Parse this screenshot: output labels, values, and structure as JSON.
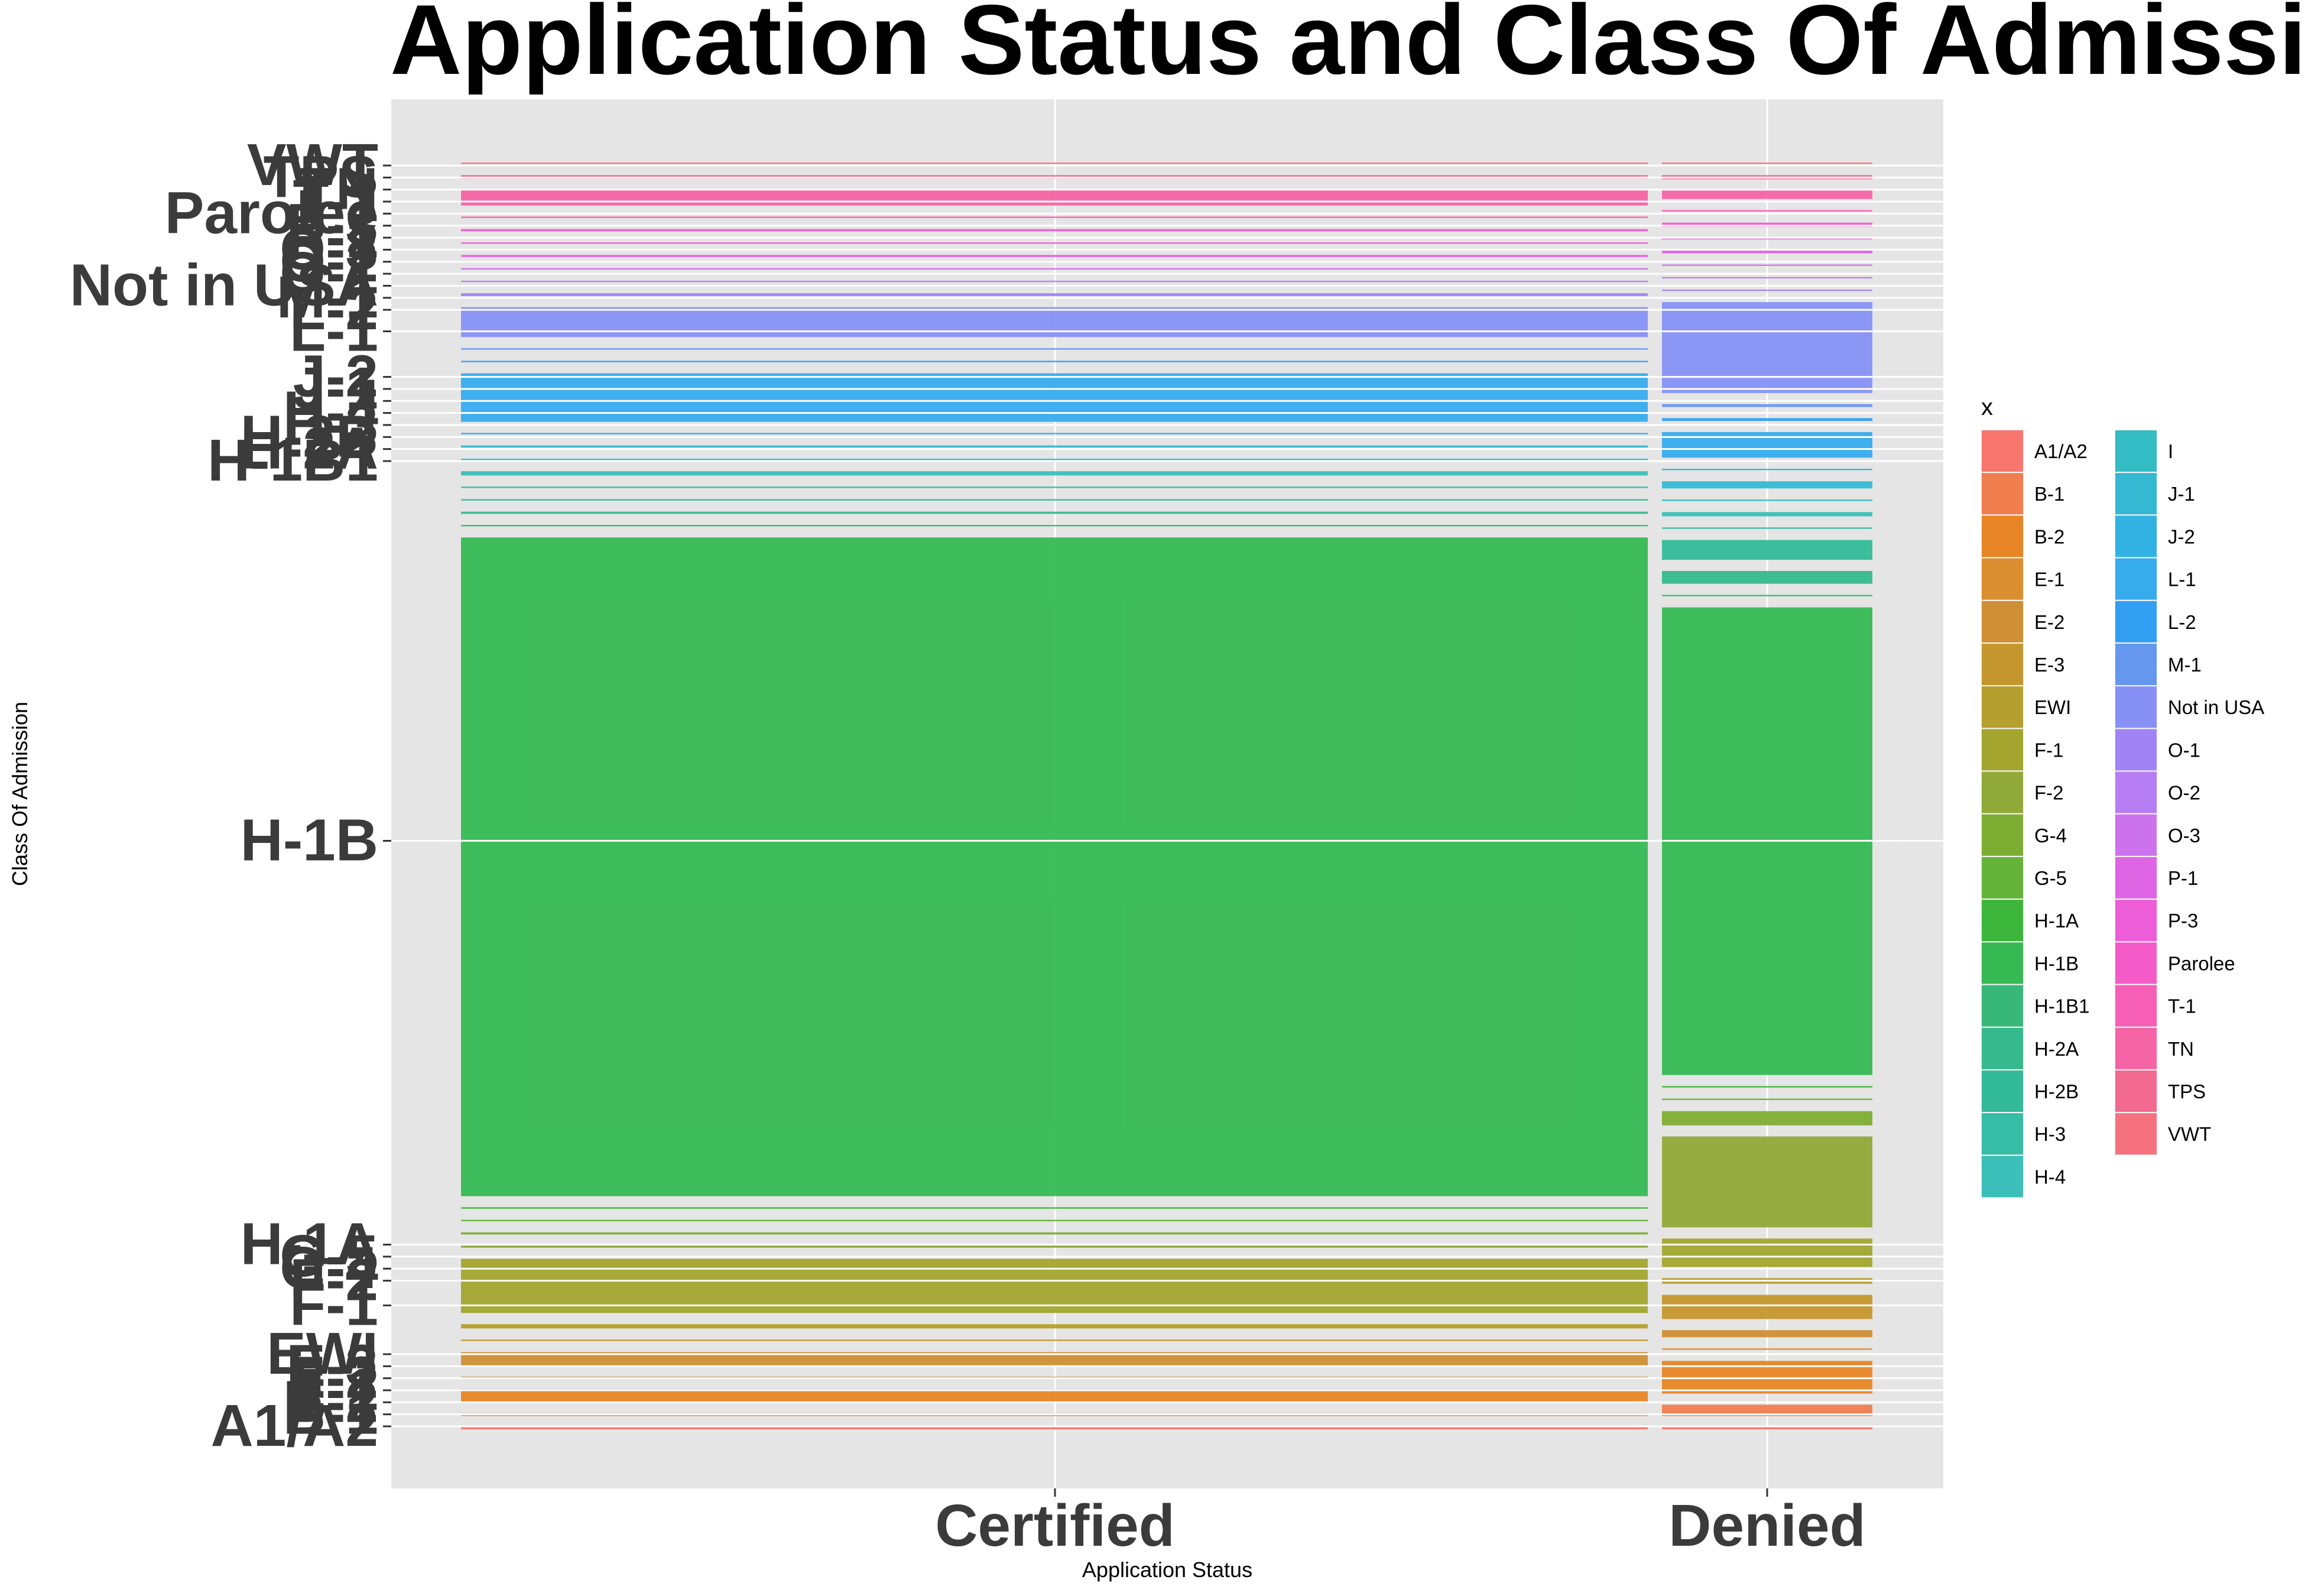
{
  "chart_data": {
    "type": "mosaic",
    "title": "Application Status and Class Of Admission",
    "xlabel": "Application Status",
    "ylabel": "Class Of Admission",
    "x_categories": [
      "Certified",
      "Denied"
    ],
    "x_widths": [
      0.84,
      0.16
    ],
    "grid": true,
    "legend": {
      "title": "x",
      "position": "right",
      "columns": 2
    },
    "series": [
      {
        "name": "A1/A2",
        "color": "#F8766D",
        "certified": 0.0015,
        "denied": 0.0015
      },
      {
        "name": "B-1",
        "color": "#F17E4E",
        "certified": 0.002,
        "denied": 0.008
      },
      {
        "name": "B-2",
        "color": "#E88526",
        "certified": 0.009,
        "denied": 0.023
      },
      {
        "name": "E-1",
        "color": "#DB8E2F",
        "certified": 0.001,
        "denied": 0.001
      },
      {
        "name": "E-2",
        "color": "#D08F35",
        "certified": 0.0095,
        "denied": 0.005
      },
      {
        "name": "E-3",
        "color": "#C4972E",
        "certified": 0.001,
        "denied": 0.017
      },
      {
        "name": "EWI",
        "color": "#B59F2F",
        "certified": 0.003,
        "denied": 0.004
      },
      {
        "name": "F-1",
        "color": "#A3A52F",
        "certified": 0.038,
        "denied": 0.02
      },
      {
        "name": "F-2",
        "color": "#91A938",
        "certified": 0.0015,
        "denied": 0.064
      },
      {
        "name": "G-4",
        "color": "#7EAD33",
        "certified": 0.0015,
        "denied": 0.01
      },
      {
        "name": "G-5",
        "color": "#64B43A",
        "certified": 0.001,
        "denied": 0.001
      },
      {
        "name": "H-1A",
        "color": "#3BB53A",
        "certified": 0.001,
        "denied": 0.001
      },
      {
        "name": "H-1B",
        "color": "#36B953",
        "certified": 0.462,
        "denied": 0.329
      },
      {
        "name": "H-1B1",
        "color": "#37B878",
        "certified": 0.001,
        "denied": 0.001
      },
      {
        "name": "H-2A",
        "color": "#36B98C",
        "certified": 0.0015,
        "denied": 0.009
      },
      {
        "name": "H-2B",
        "color": "#33BA98",
        "certified": 0.001,
        "denied": 0.014
      },
      {
        "name": "H-3",
        "color": "#37BCA5",
        "certified": 0.001,
        "denied": 0.001
      },
      {
        "name": "H-4",
        "color": "#3BBFB8",
        "certified": 0.003,
        "denied": 0.003
      },
      {
        "name": "I",
        "color": "#34BCC4",
        "certified": 0.001,
        "denied": 0.001
      },
      {
        "name": "J-1",
        "color": "#35B9D3",
        "certified": 0.0015,
        "denied": 0.005
      },
      {
        "name": "J-2",
        "color": "#32B2E3",
        "certified": 0.001,
        "denied": 0.001
      },
      {
        "name": "L-1",
        "color": "#36ACED",
        "certified": 0.034,
        "denied": 0.018
      },
      {
        "name": "L-2",
        "color": "#329FF3",
        "certified": 0.001,
        "denied": 0.002
      },
      {
        "name": "M-1",
        "color": "#6697EF",
        "certified": 0.001,
        "denied": 0.002
      },
      {
        "name": "Not in USA",
        "color": "#8791F5",
        "certified": 0.021,
        "denied": 0.064
      },
      {
        "name": "O-1",
        "color": "#A183F6",
        "certified": 0.002,
        "denied": 0.001
      },
      {
        "name": "O-2",
        "color": "#B77DF3",
        "certified": 0.001,
        "denied": 0.001
      },
      {
        "name": "O-3",
        "color": "#CC72EC",
        "certified": 0.001,
        "denied": 0.001
      },
      {
        "name": "P-1",
        "color": "#DE66E4",
        "certified": 0.0015,
        "denied": 0.002
      },
      {
        "name": "P-3",
        "color": "#EC5DD7",
        "certified": 0.001,
        "denied": 0.001
      },
      {
        "name": "Parolee",
        "color": "#F45BC9",
        "certified": 0.0015,
        "denied": 0.003
      },
      {
        "name": "T-1",
        "color": "#F75EB6",
        "certified": 0.001,
        "denied": 0.001
      },
      {
        "name": "TN",
        "color": "#F564A4",
        "certified": 0.011,
        "denied": 0.006
      },
      {
        "name": "TPS",
        "color": "#F36A91",
        "certified": 0.0025,
        "denied": 0.003
      },
      {
        "name": "VWT",
        "color": "#F5717E",
        "certified": 0.001,
        "denied": 0.001
      }
    ]
  }
}
